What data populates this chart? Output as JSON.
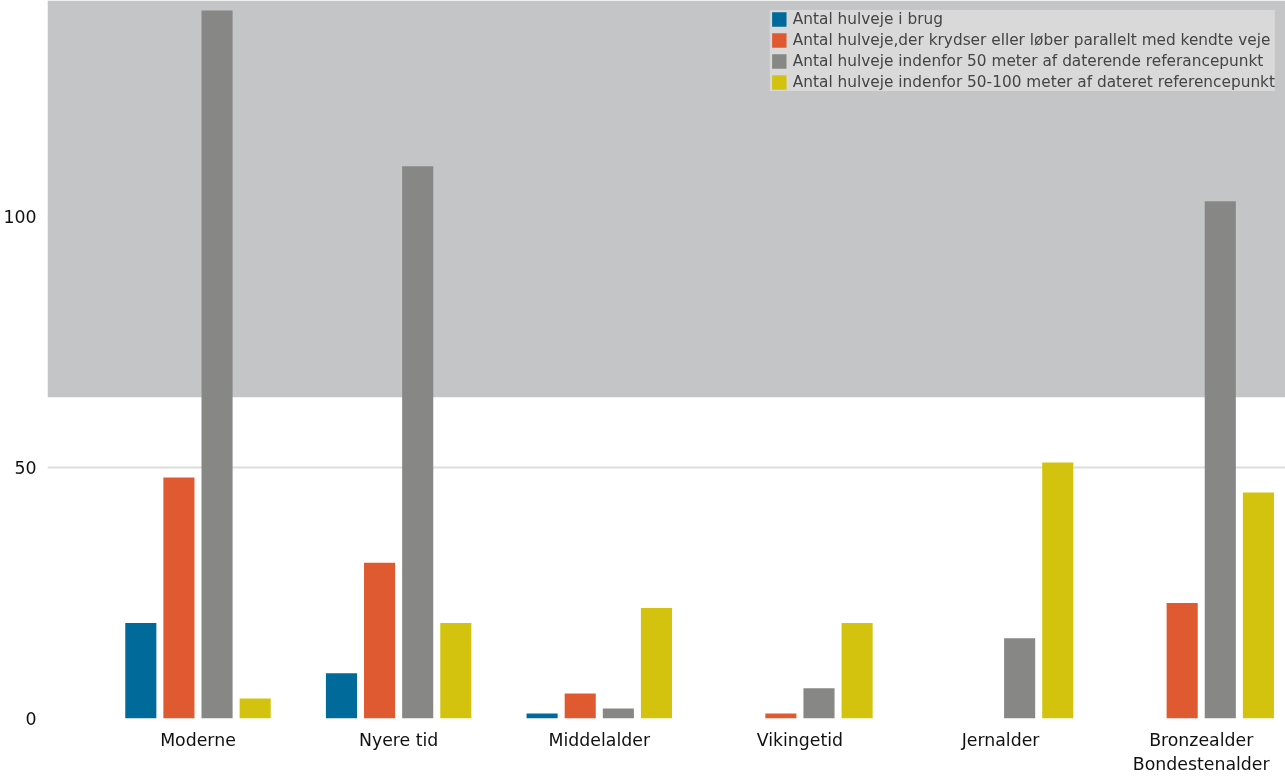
{
  "chart_data": {
    "type": "bar",
    "categories": [
      "Moderne",
      "Nyere tid",
      "Middelalder",
      "Vikingetid",
      "Jernalder",
      "Bronzealder\nBondestenalder"
    ],
    "series": [
      {
        "name": "Antal hulveje i brug",
        "color": "#006a9b",
        "values": [
          19,
          9,
          1,
          null,
          null,
          null
        ]
      },
      {
        "name": "Antal hulveje,der krydser eller løber parallelt med kendte veje",
        "color": "#e05a31",
        "values": [
          48,
          31,
          5,
          1,
          null,
          23
        ]
      },
      {
        "name": "Antal hulveje indenfor 50 meter af daterende referancepunkt",
        "color": "#878786",
        "values": [
          141,
          110,
          2,
          6,
          16,
          103
        ]
      },
      {
        "name": "Antal hulveje indenfor 50-100 meter af dateret referencepunkt",
        "color": "#d3c30f",
        "values": [
          4,
          19,
          22,
          19,
          51,
          45
        ]
      }
    ],
    "ylim": [
      0,
      143
    ],
    "yticks": [
      0,
      50,
      100
    ],
    "grid": "y",
    "legend": "top right",
    "bands": [
      {
        "axis": "y",
        "from": 64,
        "to": 143,
        "color": "#c4c5c7"
      }
    ]
  }
}
